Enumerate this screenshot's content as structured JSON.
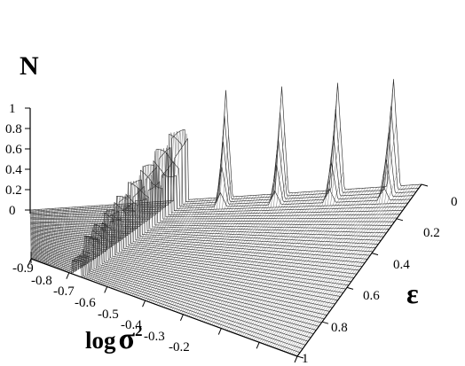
{
  "chart_data": {
    "type": "surface3d",
    "title": "",
    "z_axis": {
      "label": "N",
      "range": [
        0,
        1
      ],
      "ticks": [
        "0",
        "0.2",
        "0.4",
        "0.6",
        "0.8",
        "1"
      ]
    },
    "x_axis": {
      "label_main": "log",
      "label_symbol": "σ",
      "label_sup": "2",
      "range": [
        -0.9,
        -0.2
      ],
      "ticks": [
        "-0.9",
        "-0.8",
        "-0.7",
        "-0.6",
        "-0.5",
        "-0.4",
        "-0.3",
        "-0.2"
      ]
    },
    "y_axis": {
      "label": "ε",
      "range": [
        0,
        1
      ],
      "ticks": [
        "0",
        "0.2",
        "0.4",
        "0.6",
        "0.8",
        "1"
      ]
    },
    "surface_description": {
      "background_level": 0,
      "transition_ridge": "N rises from 0 near log σ² ≈ -0.78 (ε=1) to -0.63 (ε=0)",
      "spikes": [
        {
          "log_sigma2": -0.55,
          "epsilon": 0.0,
          "N": 1.05
        },
        {
          "log_sigma2": -0.45,
          "epsilon": 0.0,
          "N": 1.05
        },
        {
          "log_sigma2": -0.35,
          "epsilon": 0.0,
          "N": 1.05
        },
        {
          "log_sigma2": -0.25,
          "epsilon": 0.0,
          "N": 1.05
        }
      ]
    }
  }
}
